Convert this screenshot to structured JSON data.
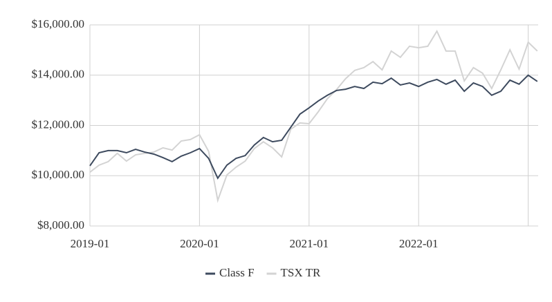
{
  "chart_data": {
    "type": "line",
    "categories": [
      "2019-01",
      null,
      null,
      null,
      null,
      null,
      null,
      null,
      null,
      null,
      null,
      null,
      "2020-01",
      null,
      null,
      null,
      null,
      null,
      null,
      null,
      null,
      null,
      null,
      null,
      "2021-01",
      null,
      null,
      null,
      null,
      null,
      null,
      null,
      null,
      null,
      null,
      null,
      "2022-01",
      null,
      null,
      null,
      null,
      null,
      null,
      null,
      null,
      null,
      null,
      null,
      null,
      null
    ],
    "series": [
      {
        "name": "Class F",
        "color": "#3d4a5e",
        "values": [
          10392,
          10914,
          11000,
          11000,
          10914,
          11050,
          10940,
          10860,
          10720,
          10560,
          10780,
          10914,
          11080,
          10690,
          9900,
          10420,
          10690,
          10800,
          11220,
          11520,
          11350,
          11410,
          11930,
          12450,
          12700,
          12970,
          13200,
          13390,
          13440,
          13550,
          13470,
          13720,
          13660,
          13880,
          13610,
          13690,
          13550,
          13720,
          13830,
          13640,
          13800,
          13360,
          13690,
          13550,
          13200,
          13360,
          13800,
          13640,
          14000,
          13750
        ]
      },
      {
        "name": "TSX TR",
        "color": "#d3d3d3",
        "values": [
          10140,
          10420,
          10560,
          10890,
          10580,
          10830,
          10890,
          10940,
          11110,
          11020,
          11380,
          11440,
          11630,
          10970,
          9020,
          10030,
          10340,
          10580,
          11080,
          11350,
          11110,
          10750,
          11850,
          12100,
          12070,
          12540,
          13060,
          13420,
          13860,
          14190,
          14300,
          14540,
          14210,
          14960,
          14710,
          15150,
          15090,
          15150,
          15750,
          14960,
          14960,
          13770,
          14300,
          14080,
          13470,
          14210,
          15010,
          14240,
          15310,
          14960
        ]
      }
    ],
    "ylim": [
      8000,
      16000
    ],
    "yticks": [
      {
        "value": 8000,
        "label": "$8,000.00"
      },
      {
        "value": 10000,
        "label": "$10,000.00"
      },
      {
        "value": 12000,
        "label": "$12,000.00"
      },
      {
        "value": 14000,
        "label": "$14,000.00"
      },
      {
        "value": 16000,
        "label": "$16,000.00"
      }
    ],
    "grid": true,
    "legend": "bottom"
  }
}
